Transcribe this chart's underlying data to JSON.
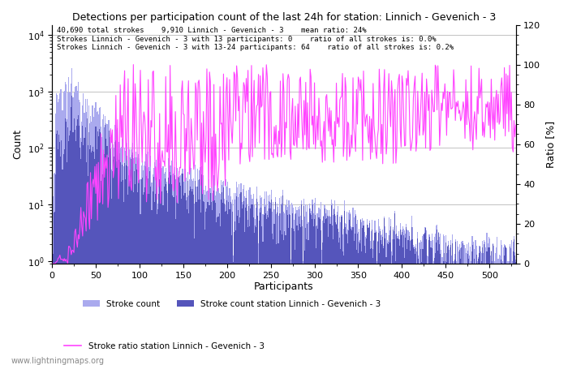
{
  "title": "Detections per participation count of the last 24h for station: Linnich - Gevenich - 3",
  "annotation_lines": [
    "40,690 total strokes    9,910 Linnich - Gevenich - 3    mean ratio: 24%",
    "Strokes Linnich - Gevenich - 3 with 13 participants: 0    ratio of all strokes is: 0.0%",
    "Strokes Linnich - Gevenich - 3 with 13-24 participants: 64    ratio of all strokes is: 0.2%"
  ],
  "xlabel": "Participants",
  "ylabel_left": "Count",
  "ylabel_right": "Ratio [%]",
  "xlim": [
    0,
    530
  ],
  "ylim_right": [
    0,
    120
  ],
  "legend_labels": [
    "Stroke count",
    "Stroke count station Linnich - Gevenich - 3",
    "Stroke ratio station Linnich - Gevenich - 3"
  ],
  "watermark": "www.lightningmaps.org",
  "bar_color_all": "#aaaaee",
  "bar_color_station": "#5555bb",
  "line_color_ratio": "#ff44ff",
  "background_color": "#ffffff",
  "grid_color": "#aaaaaa"
}
